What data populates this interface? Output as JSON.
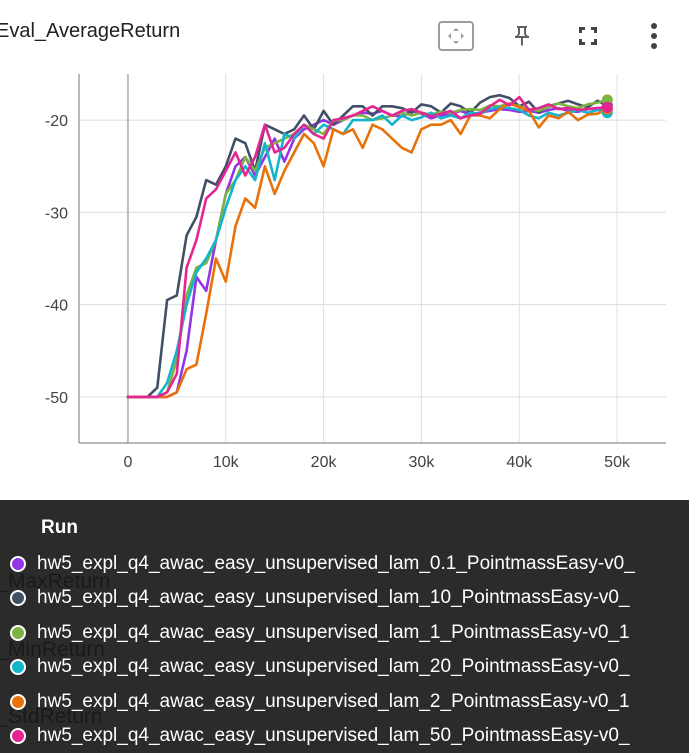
{
  "card": {
    "title": "Eval_AverageReturn",
    "toolbar": [
      {
        "icon": "fit-domain-icon"
      },
      {
        "icon": "pin-icon"
      },
      {
        "icon": "fullscreen-icon"
      },
      {
        "icon": "more-vert-icon"
      }
    ]
  },
  "chart_data": {
    "type": "line",
    "title": "Eval_AverageReturn",
    "xlabel": "",
    "ylabel": "",
    "xlim": [
      -5000,
      55000
    ],
    "ylim": [
      -55,
      -15
    ],
    "x_ticks": [
      0,
      10000,
      20000,
      30000,
      40000,
      50000
    ],
    "x_tick_labels": [
      "0",
      "10k",
      "20k",
      "30k",
      "40k",
      "50k"
    ],
    "y_ticks": [
      -20,
      -30,
      -40,
      -50
    ],
    "y_tick_labels": [
      "-20",
      "-30",
      "-40",
      "-50"
    ],
    "grid": true,
    "x": [
      0,
      1000,
      2000,
      3000,
      4000,
      5000,
      6000,
      7000,
      8000,
      9000,
      10000,
      11000,
      12000,
      13000,
      14000,
      15000,
      16000,
      17000,
      18000,
      19000,
      20000,
      21000,
      22000,
      23000,
      24000,
      25000,
      26000,
      27000,
      28000,
      29000,
      30000,
      31000,
      32000,
      33000,
      34000,
      35000,
      36000,
      37000,
      38000,
      39000,
      40000,
      41000,
      42000,
      43000,
      44000,
      45000,
      46000,
      47000,
      48000,
      49000
    ],
    "series": [
      {
        "name": "hw5_expl_q4_awac_easy_unsupervised_lam_0.1_PointmassEasy-v0_",
        "color": "#9334e6",
        "values": [
          -50,
          -50,
          -50,
          -50,
          -50,
          -49.5,
          -45,
          -37,
          -38.5,
          -33,
          -28,
          -25,
          -24,
          -26,
          -24,
          -22,
          -24.5,
          -22,
          -21,
          -20.5,
          -20,
          -20.5,
          -20,
          -19.5,
          -19.2,
          -19.3,
          -19,
          -19.5,
          -19.6,
          -19,
          -19.3,
          -19.8,
          -19.5,
          -19.3,
          -19,
          -19.4,
          -19.2,
          -19,
          -18.8,
          -18.9,
          -19.1,
          -19,
          -19.2,
          -18.9,
          -18.7,
          -19,
          -19.1,
          -18.8,
          -18.7,
          -18.9
        ]
      },
      {
        "name": "hw5_expl_q4_awac_easy_unsupervised_lam_10_PointmassEasy-v0_",
        "color": "#425066",
        "values": [
          -50,
          -50,
          -50,
          -49,
          -39.5,
          -39,
          -32.5,
          -30.5,
          -26.5,
          -27,
          -25,
          -22,
          -22.5,
          -25.5,
          -20.5,
          -21,
          -21.5,
          -21,
          -19.5,
          -21,
          -19,
          -20.5,
          -19.5,
          -18.5,
          -18.5,
          -19.5,
          -18.5,
          -18.5,
          -18.7,
          -19.2,
          -18.3,
          -18.5,
          -19.2,
          -18.2,
          -18.5,
          -19.2,
          -18.1,
          -17.5,
          -17.3,
          -17.6,
          -18.5,
          -18,
          -19.2,
          -18.5,
          -18.2,
          -17.9,
          -18.3,
          -18.6,
          -17.9,
          -18.4
        ]
      },
      {
        "name": "hw5_expl_q4_awac_easy_unsupervised_lam_1_PointmassEasy-v0_1",
        "color": "#7cb342",
        "values": [
          -50,
          -50,
          -50,
          -50,
          -49.5,
          -46,
          -39,
          -36,
          -35.5,
          -33,
          -28,
          -26.5,
          -24,
          -25.5,
          -23,
          -22.5,
          -22,
          -21.5,
          -20.5,
          -21,
          -21.5,
          -20,
          -20,
          -19.5,
          -19.5,
          -20,
          -19.8,
          -19.5,
          -19.2,
          -19.5,
          -19.2,
          -19.4,
          -19.1,
          -19.2,
          -18.9,
          -18.8,
          -18.9,
          -18.4,
          -18.5,
          -18.2,
          -18.5,
          -18.8,
          -19,
          -18.6,
          -18.2,
          -18.5,
          -18.7,
          -18.3,
          -18.1,
          -17.8
        ]
      },
      {
        "name": "hw5_expl_q4_awac_easy_unsupervised_lam_20_PointmassEasy-v0_",
        "color": "#12b5cb",
        "values": [
          -50,
          -50,
          -50,
          -50,
          -48.5,
          -45,
          -40,
          -36.5,
          -35,
          -33,
          -29.5,
          -26.5,
          -25,
          -26.5,
          -22.5,
          -26.5,
          -21.5,
          -22,
          -20.5,
          -21.5,
          -20.5,
          -21,
          -21.5,
          -20,
          -20,
          -20,
          -19.5,
          -20.5,
          -19.5,
          -20,
          -19.7,
          -19.2,
          -19.8,
          -19.5,
          -19.8,
          -19.2,
          -19.3,
          -18.8,
          -18.6,
          -18.7,
          -18.9,
          -19.5,
          -19.8,
          -19.2,
          -19.5,
          -19.2,
          -18.9,
          -19.2,
          -18.9,
          -19.2
        ]
      },
      {
        "name": "hw5_expl_q4_awac_easy_unsupervised_lam_2_PointmassEasy-v0_1",
        "color": "#e8710a",
        "values": [
          -50,
          -50,
          -50,
          -50,
          -50,
          -49.5,
          -47,
          -46.5,
          -41,
          -35,
          -37.5,
          -31.5,
          -28.5,
          -29.5,
          -25,
          -28,
          -25.5,
          -23.5,
          -21.5,
          -22.5,
          -25,
          -21,
          -21.5,
          -21,
          -23,
          -20.5,
          -21,
          -22,
          -23,
          -23.5,
          -21,
          -20.5,
          -20.5,
          -20,
          -21.5,
          -19.5,
          -19.5,
          -19.8,
          -18.8,
          -18.2,
          -18.6,
          -19,
          -20.8,
          -19.5,
          -19.8,
          -19.1,
          -20,
          -19.4,
          -19.3,
          -18.8
        ]
      },
      {
        "name": "hw5_expl_q4_awac_easy_unsupervised_lam_50_PointmassEasy-v0_",
        "color": "#e52592",
        "values": [
          -50,
          -50,
          -50,
          -50,
          -49.5,
          -47.5,
          -36,
          -33,
          -28.5,
          -27.5,
          -25.5,
          -23.5,
          -26,
          -24,
          -20.5,
          -23.5,
          -23,
          -21.5,
          -20.5,
          -21.5,
          -22,
          -20,
          -19.8,
          -19.5,
          -19,
          -18.5,
          -19,
          -19.5,
          -19,
          -18.8,
          -19.2,
          -19.6,
          -19.3,
          -19,
          -19.8,
          -19.5,
          -19.3,
          -18.5,
          -17.8,
          -18.4,
          -17.5,
          -18.9,
          -18.7,
          -18.3,
          -18.8,
          -18.7,
          -18.9,
          -18.8,
          -18.7,
          -18.6
        ]
      }
    ]
  },
  "tooltip": {
    "header": "Run",
    "ghost_labels": [
      "al_MaxReturn",
      "al_MinReturn",
      "al_StdReturn"
    ],
    "runs": [
      {
        "label": "hw5_expl_q4_awac_easy_unsupervised_lam_0.1_PointmassEasy-v0_",
        "color": "#9334e6"
      },
      {
        "label": "hw5_expl_q4_awac_easy_unsupervised_lam_10_PointmassEasy-v0_",
        "color": "#425066"
      },
      {
        "label": "hw5_expl_q4_awac_easy_unsupervised_lam_1_PointmassEasy-v0_1",
        "color": "#7cb342"
      },
      {
        "label": "hw5_expl_q4_awac_easy_unsupervised_lam_20_PointmassEasy-v0_",
        "color": "#12b5cb"
      },
      {
        "label": "hw5_expl_q4_awac_easy_unsupervised_lam_2_PointmassEasy-v0_1",
        "color": "#e8710a"
      },
      {
        "label": "hw5_expl_q4_awac_easy_unsupervised_lam_50_PointmassEasy-v0_",
        "color": "#e52592"
      }
    ]
  }
}
